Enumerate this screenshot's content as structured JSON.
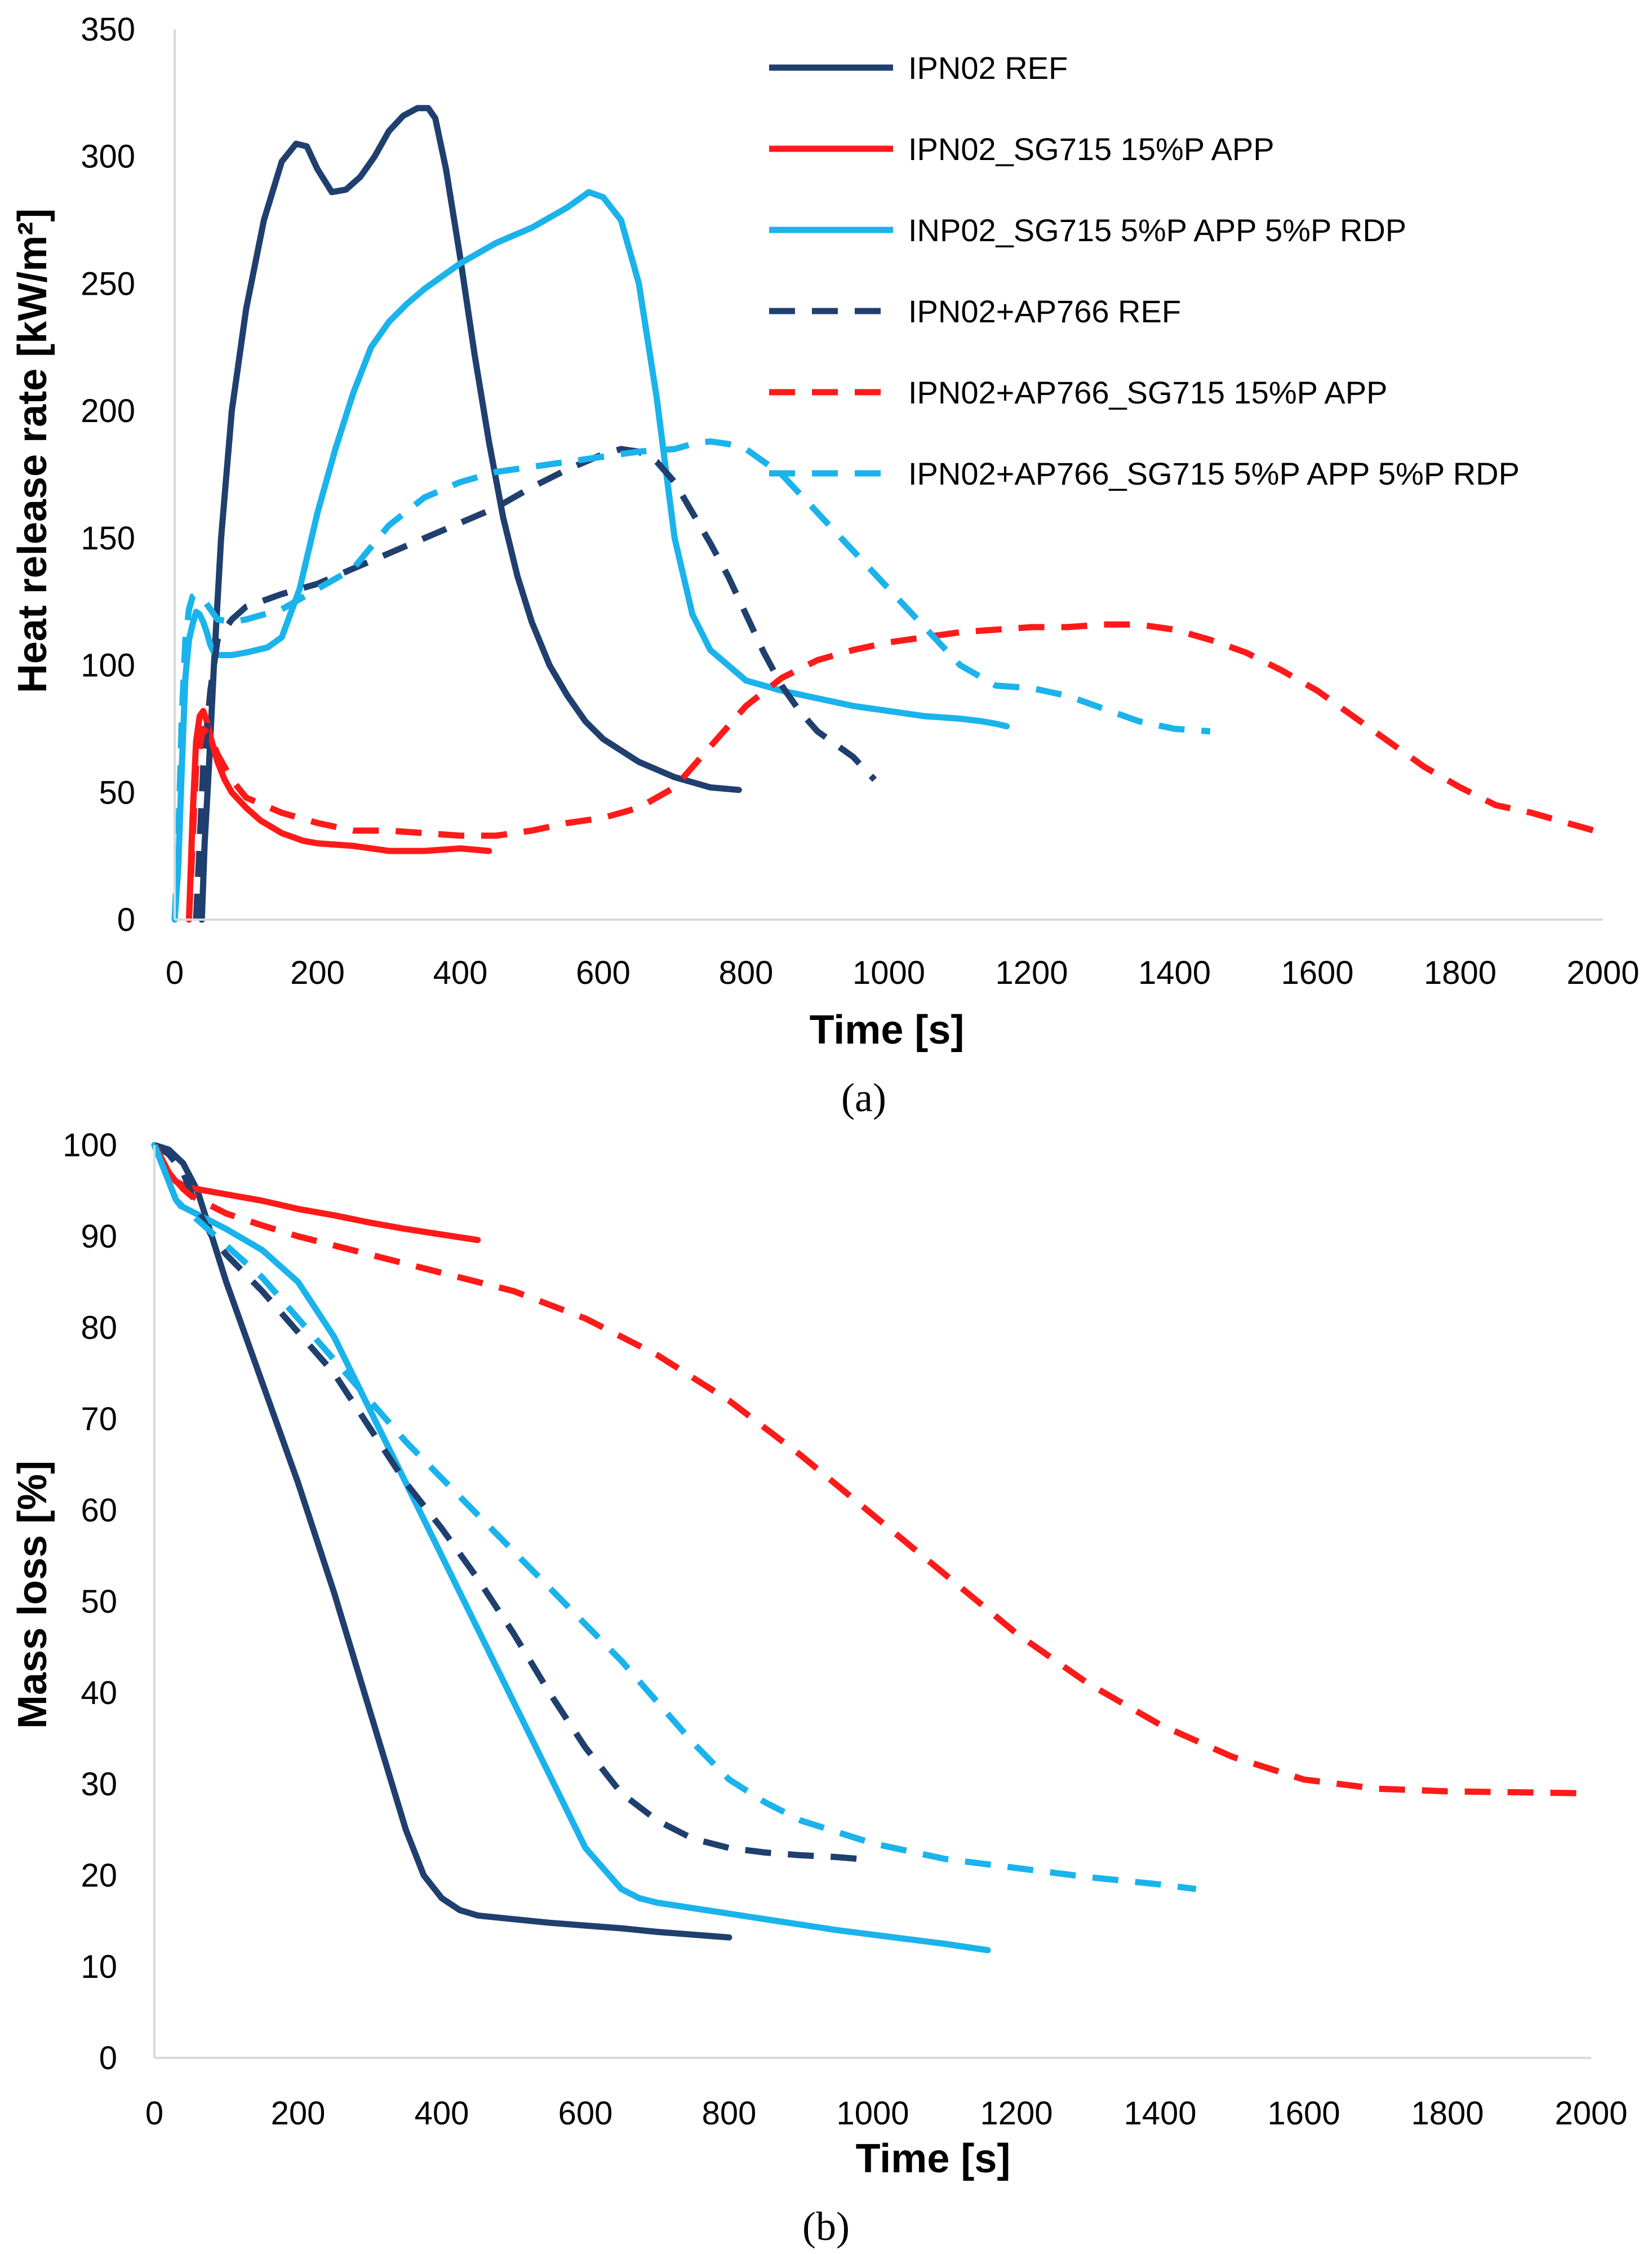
{
  "colors": {
    "navy": "#1f3f6e",
    "red": "#ff1a1a",
    "cyan": "#1ab3ec",
    "axis": "#d9d9d9"
  },
  "chart_data": [
    {
      "type": "line",
      "panel_label": "(a)",
      "xlabel": "Time [s]",
      "ylabel": "Heat release rate [kW/m²]",
      "xlim": [
        0,
        2000
      ],
      "ylim": [
        0,
        350
      ],
      "xticks": [
        0,
        200,
        400,
        600,
        800,
        1000,
        1200,
        1400,
        1600,
        1800,
        2000
      ],
      "yticks": [
        0,
        50,
        100,
        150,
        200,
        250,
        300,
        350
      ],
      "grid": false,
      "legend_position": "top-right",
      "legend": [
        "IPN02 REF",
        "IPN02_SG715 15%P APP",
        "INP02_SG715 5%P APP 5%P RDP",
        "IPN02+AP766 REF",
        "IPN02+AP766_SG715 15%P APP",
        "IPN02+AP766_SG715 5%P APP 5%P RDP"
      ],
      "series": [
        {
          "name": "IPN02 REF",
          "color": "navy",
          "dash": false,
          "x": [
            38,
            42,
            48,
            55,
            65,
            80,
            100,
            125,
            150,
            170,
            185,
            200,
            220,
            240,
            260,
            280,
            300,
            320,
            340,
            355,
            365,
            380,
            400,
            420,
            440,
            460,
            480,
            500,
            525,
            550,
            575,
            600,
            650,
            700,
            750,
            790
          ],
          "y": [
            0,
            30,
            60,
            100,
            150,
            200,
            240,
            275,
            298,
            305,
            304,
            295,
            286,
            287,
            292,
            300,
            310,
            316,
            319,
            319,
            315,
            295,
            260,
            222,
            188,
            158,
            135,
            117,
            100,
            88,
            78,
            71,
            62,
            56,
            52,
            51
          ]
        },
        {
          "name": "IPN02_SG715 15%P APP",
          "color": "red",
          "dash": false,
          "x": [
            20,
            25,
            30,
            35,
            40,
            45,
            50,
            60,
            70,
            80,
            100,
            120,
            150,
            180,
            200,
            250,
            300,
            350,
            400,
            440
          ],
          "y": [
            0,
            40,
            70,
            80,
            82,
            78,
            72,
            62,
            55,
            50,
            44,
            39,
            34,
            31,
            30,
            29,
            27,
            27,
            28,
            27
          ]
        },
        {
          "name": "INP02_SG715 5%P APP 5%P RDP",
          "color": "cyan",
          "dash": false,
          "x": [
            0,
            5,
            10,
            15,
            20,
            25,
            30,
            35,
            40,
            45,
            50,
            55,
            60,
            80,
            100,
            130,
            150,
            175,
            200,
            225,
            250,
            275,
            300,
            325,
            350,
            375,
            400,
            450,
            500,
            550,
            580,
            600,
            625,
            650,
            675,
            700,
            725,
            750,
            800,
            850,
            900,
            950,
            1000,
            1050,
            1100,
            1130,
            1150,
            1165
          ],
          "y": [
            0,
            20,
            60,
            95,
            110,
            116,
            121,
            120,
            117,
            113,
            108,
            105,
            104,
            104,
            105,
            107,
            111,
            130,
            160,
            185,
            207,
            225,
            235,
            242,
            248,
            253,
            258,
            266,
            272,
            280,
            286,
            284,
            275,
            250,
            205,
            150,
            120,
            106,
            94,
            90,
            87,
            84,
            82,
            80,
            79,
            78,
            77,
            76
          ]
        },
        {
          "name": "IPN02+AP766 REF",
          "color": "navy",
          "dash": true,
          "x": [
            30,
            40,
            50,
            60,
            80,
            100,
            150,
            200,
            250,
            300,
            350,
            400,
            450,
            500,
            550,
            600,
            625,
            650,
            675,
            700,
            725,
            750,
            775,
            800,
            825,
            850,
            875,
            900,
            950,
            980
          ],
          "y": [
            0,
            60,
            90,
            110,
            118,
            123,
            128,
            132,
            138,
            144,
            150,
            156,
            162,
            170,
            177,
            183,
            185,
            184,
            180,
            172,
            160,
            148,
            135,
            120,
            105,
            92,
            82,
            74,
            64,
            55
          ]
        },
        {
          "name": "IPN02+AP766_SG715 15%P APP",
          "color": "red",
          "dash": true,
          "x": [
            20,
            25,
            30,
            40,
            50,
            60,
            80,
            100,
            150,
            200,
            250,
            300,
            350,
            400,
            450,
            500,
            550,
            600,
            650,
            700,
            750,
            800,
            850,
            900,
            950,
            1000,
            1050,
            1100,
            1150,
            1200,
            1250,
            1300,
            1350,
            1400,
            1450,
            1500,
            1550,
            1600,
            1650,
            1700,
            1750,
            1800,
            1850,
            1900,
            1950,
            2000
          ],
          "y": [
            0,
            30,
            60,
            75,
            72,
            65,
            55,
            48,
            42,
            38,
            35,
            35,
            34,
            33,
            33,
            35,
            38,
            40,
            44,
            52,
            68,
            84,
            95,
            102,
            106,
            109,
            111,
            113,
            114,
            115,
            115,
            116,
            116,
            114,
            110,
            105,
            98,
            90,
            80,
            70,
            60,
            52,
            45,
            42,
            38,
            34
          ]
        },
        {
          "name": "IPN02+AP766_SG715 5%P APP 5%P RDP",
          "color": "cyan",
          "dash": true,
          "x": [
            0,
            5,
            10,
            15,
            20,
            25,
            30,
            40,
            50,
            60,
            80,
            100,
            125,
            150,
            175,
            200,
            250,
            300,
            350,
            400,
            450,
            500,
            550,
            600,
            650,
            700,
            725,
            750,
            775,
            800,
            850,
            900,
            950,
            1000,
            1050,
            1100,
            1150,
            1200,
            1250,
            1300,
            1350,
            1400,
            1450
          ],
          "y": [
            0,
            30,
            80,
            110,
            122,
            127,
            128,
            126,
            122,
            118,
            117,
            118,
            120,
            122,
            126,
            130,
            138,
            155,
            166,
            172,
            176,
            178,
            180,
            182,
            184,
            185,
            187,
            188,
            187,
            185,
            175,
            160,
            145,
            130,
            115,
            100,
            92,
            91,
            88,
            83,
            78,
            75,
            74
          ]
        }
      ]
    },
    {
      "type": "line",
      "panel_label": "(b)",
      "xlabel": "Time [s]",
      "ylabel": "Mass loss [%]",
      "xlim": [
        0,
        2000
      ],
      "ylim": [
        0,
        100
      ],
      "xticks": [
        0,
        200,
        400,
        600,
        800,
        1000,
        1200,
        1400,
        1600,
        1800,
        2000
      ],
      "yticks": [
        0,
        10,
        20,
        30,
        40,
        50,
        60,
        70,
        80,
        90,
        100
      ],
      "grid": false,
      "series": [
        {
          "name": "IPN02 REF",
          "color": "navy",
          "dash": false,
          "x": [
            0,
            20,
            40,
            60,
            80,
            100,
            150,
            200,
            250,
            300,
            350,
            375,
            400,
            425,
            450,
            500,
            550,
            600,
            650,
            700,
            750,
            800
          ],
          "y": [
            100,
            99.5,
            98,
            95,
            90,
            85,
            74,
            63,
            51,
            38,
            25,
            20,
            17.5,
            16.2,
            15.6,
            15.2,
            14.8,
            14.5,
            14.2,
            13.8,
            13.5,
            13.2
          ]
        },
        {
          "name": "IPN02_SG715 15%P APP",
          "color": "red",
          "dash": false,
          "x": [
            0,
            10,
            20,
            30,
            40,
            50,
            100,
            150,
            200,
            250,
            300,
            350,
            400,
            450
          ],
          "y": [
            100,
            98.5,
            97,
            96,
            95.6,
            95.3,
            94.6,
            93.9,
            93.0,
            92.3,
            91.5,
            90.8,
            90.2,
            89.6
          ]
        },
        {
          "name": "INP02_SG715 5%P APP 5%P RDP",
          "color": "cyan",
          "dash": false,
          "x": [
            0,
            10,
            20,
            30,
            40,
            50,
            75,
            100,
            150,
            200,
            250,
            300,
            350,
            400,
            450,
            500,
            550,
            600,
            650,
            675,
            700,
            750,
            800,
            850,
            900,
            950,
            1000,
            1050,
            1100,
            1160
          ],
          "y": [
            100,
            98,
            96,
            94,
            93.2,
            92.8,
            91.8,
            90.8,
            88.5,
            85,
            79,
            71,
            63,
            55,
            47,
            39,
            31,
            23,
            18.5,
            17.5,
            17,
            16.4,
            15.8,
            15.2,
            14.6,
            14.0,
            13.5,
            13.0,
            12.5,
            11.8
          ]
        },
        {
          "name": "IPN02+AP766 REF",
          "color": "navy",
          "dash": true,
          "x": [
            0,
            20,
            40,
            60,
            80,
            100,
            150,
            200,
            250,
            300,
            350,
            400,
            450,
            500,
            550,
            600,
            650,
            700,
            750,
            800,
            850,
            900,
            950,
            980
          ],
          "y": [
            100,
            99,
            97,
            93,
            90,
            88,
            84,
            79.5,
            75,
            69,
            63,
            58,
            52.5,
            46.5,
            40,
            34,
            29,
            26,
            24,
            23,
            22.5,
            22.2,
            22,
            21.8
          ]
        },
        {
          "name": "IPN02+AP766_SG715 15%P APP",
          "color": "red",
          "dash": true,
          "x": [
            0,
            20,
            40,
            50,
            100,
            150,
            200,
            300,
            400,
            500,
            600,
            700,
            800,
            900,
            1000,
            1100,
            1200,
            1300,
            1400,
            1500,
            1600,
            1700,
            1800,
            1900,
            1980
          ],
          "y": [
            100,
            97,
            95.2,
            94.5,
            92.5,
            91.2,
            90,
            88,
            86,
            84,
            81,
            77,
            72,
            66,
            59.5,
            53,
            46.5,
            41,
            36.5,
            33,
            30.5,
            29.5,
            29.2,
            29.1,
            29
          ]
        },
        {
          "name": "IPN02+AP766_SG715 5%P APP 5%P RDP",
          "color": "cyan",
          "dash": true,
          "x": [
            0,
            10,
            20,
            30,
            40,
            50,
            100,
            150,
            200,
            250,
            300,
            350,
            400,
            450,
            500,
            550,
            600,
            650,
            700,
            750,
            800,
            850,
            900,
            1000,
            1100,
            1200,
            1300,
            1400,
            1450
          ],
          "y": [
            100,
            98,
            96,
            94,
            93,
            92.5,
            89,
            85.5,
            81,
            76.5,
            72,
            67.5,
            63.5,
            59.5,
            55.5,
            51.5,
            47.5,
            43.5,
            39,
            34.5,
            30.5,
            28,
            26,
            23.5,
            21.8,
            20.8,
            19.8,
            19,
            18.5
          ]
        }
      ]
    }
  ]
}
